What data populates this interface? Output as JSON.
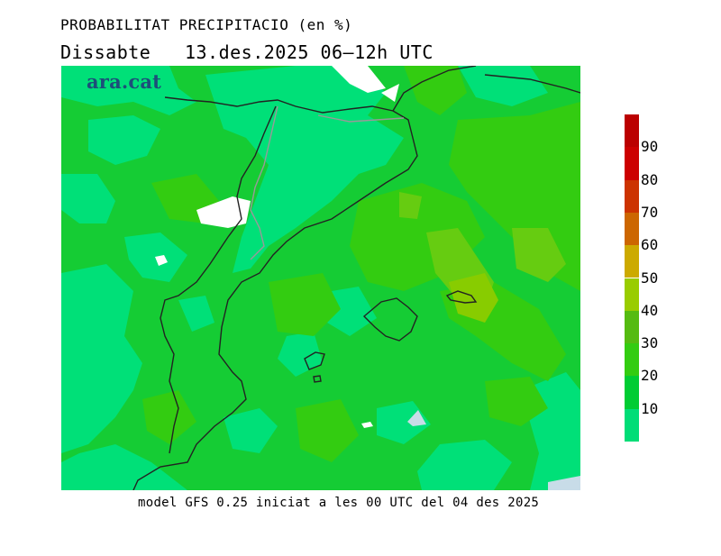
{
  "header": {
    "title": "PROBABILITAT PRECIPITACIO (en %)",
    "day": "Dissabte",
    "date": "13.des.2025",
    "period": "06–12h UTC"
  },
  "logo": {
    "text": "ara.cat"
  },
  "footer": {
    "text": "model GFS 0.25 iniciat a les 00 UTC del 04 des 2025"
  },
  "legend": {
    "levels": [
      {
        "label": "90",
        "color": "#cc0000"
      },
      {
        "label": "80",
        "color": "#cc3300"
      },
      {
        "label": "70",
        "color": "#cc6600"
      },
      {
        "label": "60",
        "color": "#ccaa00"
      },
      {
        "label": "50",
        "color": "#99cc00"
      },
      {
        "label": "40",
        "color": "#55bb11"
      },
      {
        "label": "30",
        "color": "#33cc11"
      },
      {
        "label": "20",
        "color": "#00cc33"
      },
      {
        "label": "10",
        "color": "#00dd77"
      }
    ]
  },
  "colors": {
    "p10": "#00e078",
    "p20": "#15cc34",
    "p30": "#33cc11",
    "p40": "#66cc11",
    "p50": "#88cc00",
    "none": "#ffffff",
    "sea_ice": "#c8dce8",
    "coast": "#222222",
    "border": "#999999"
  }
}
